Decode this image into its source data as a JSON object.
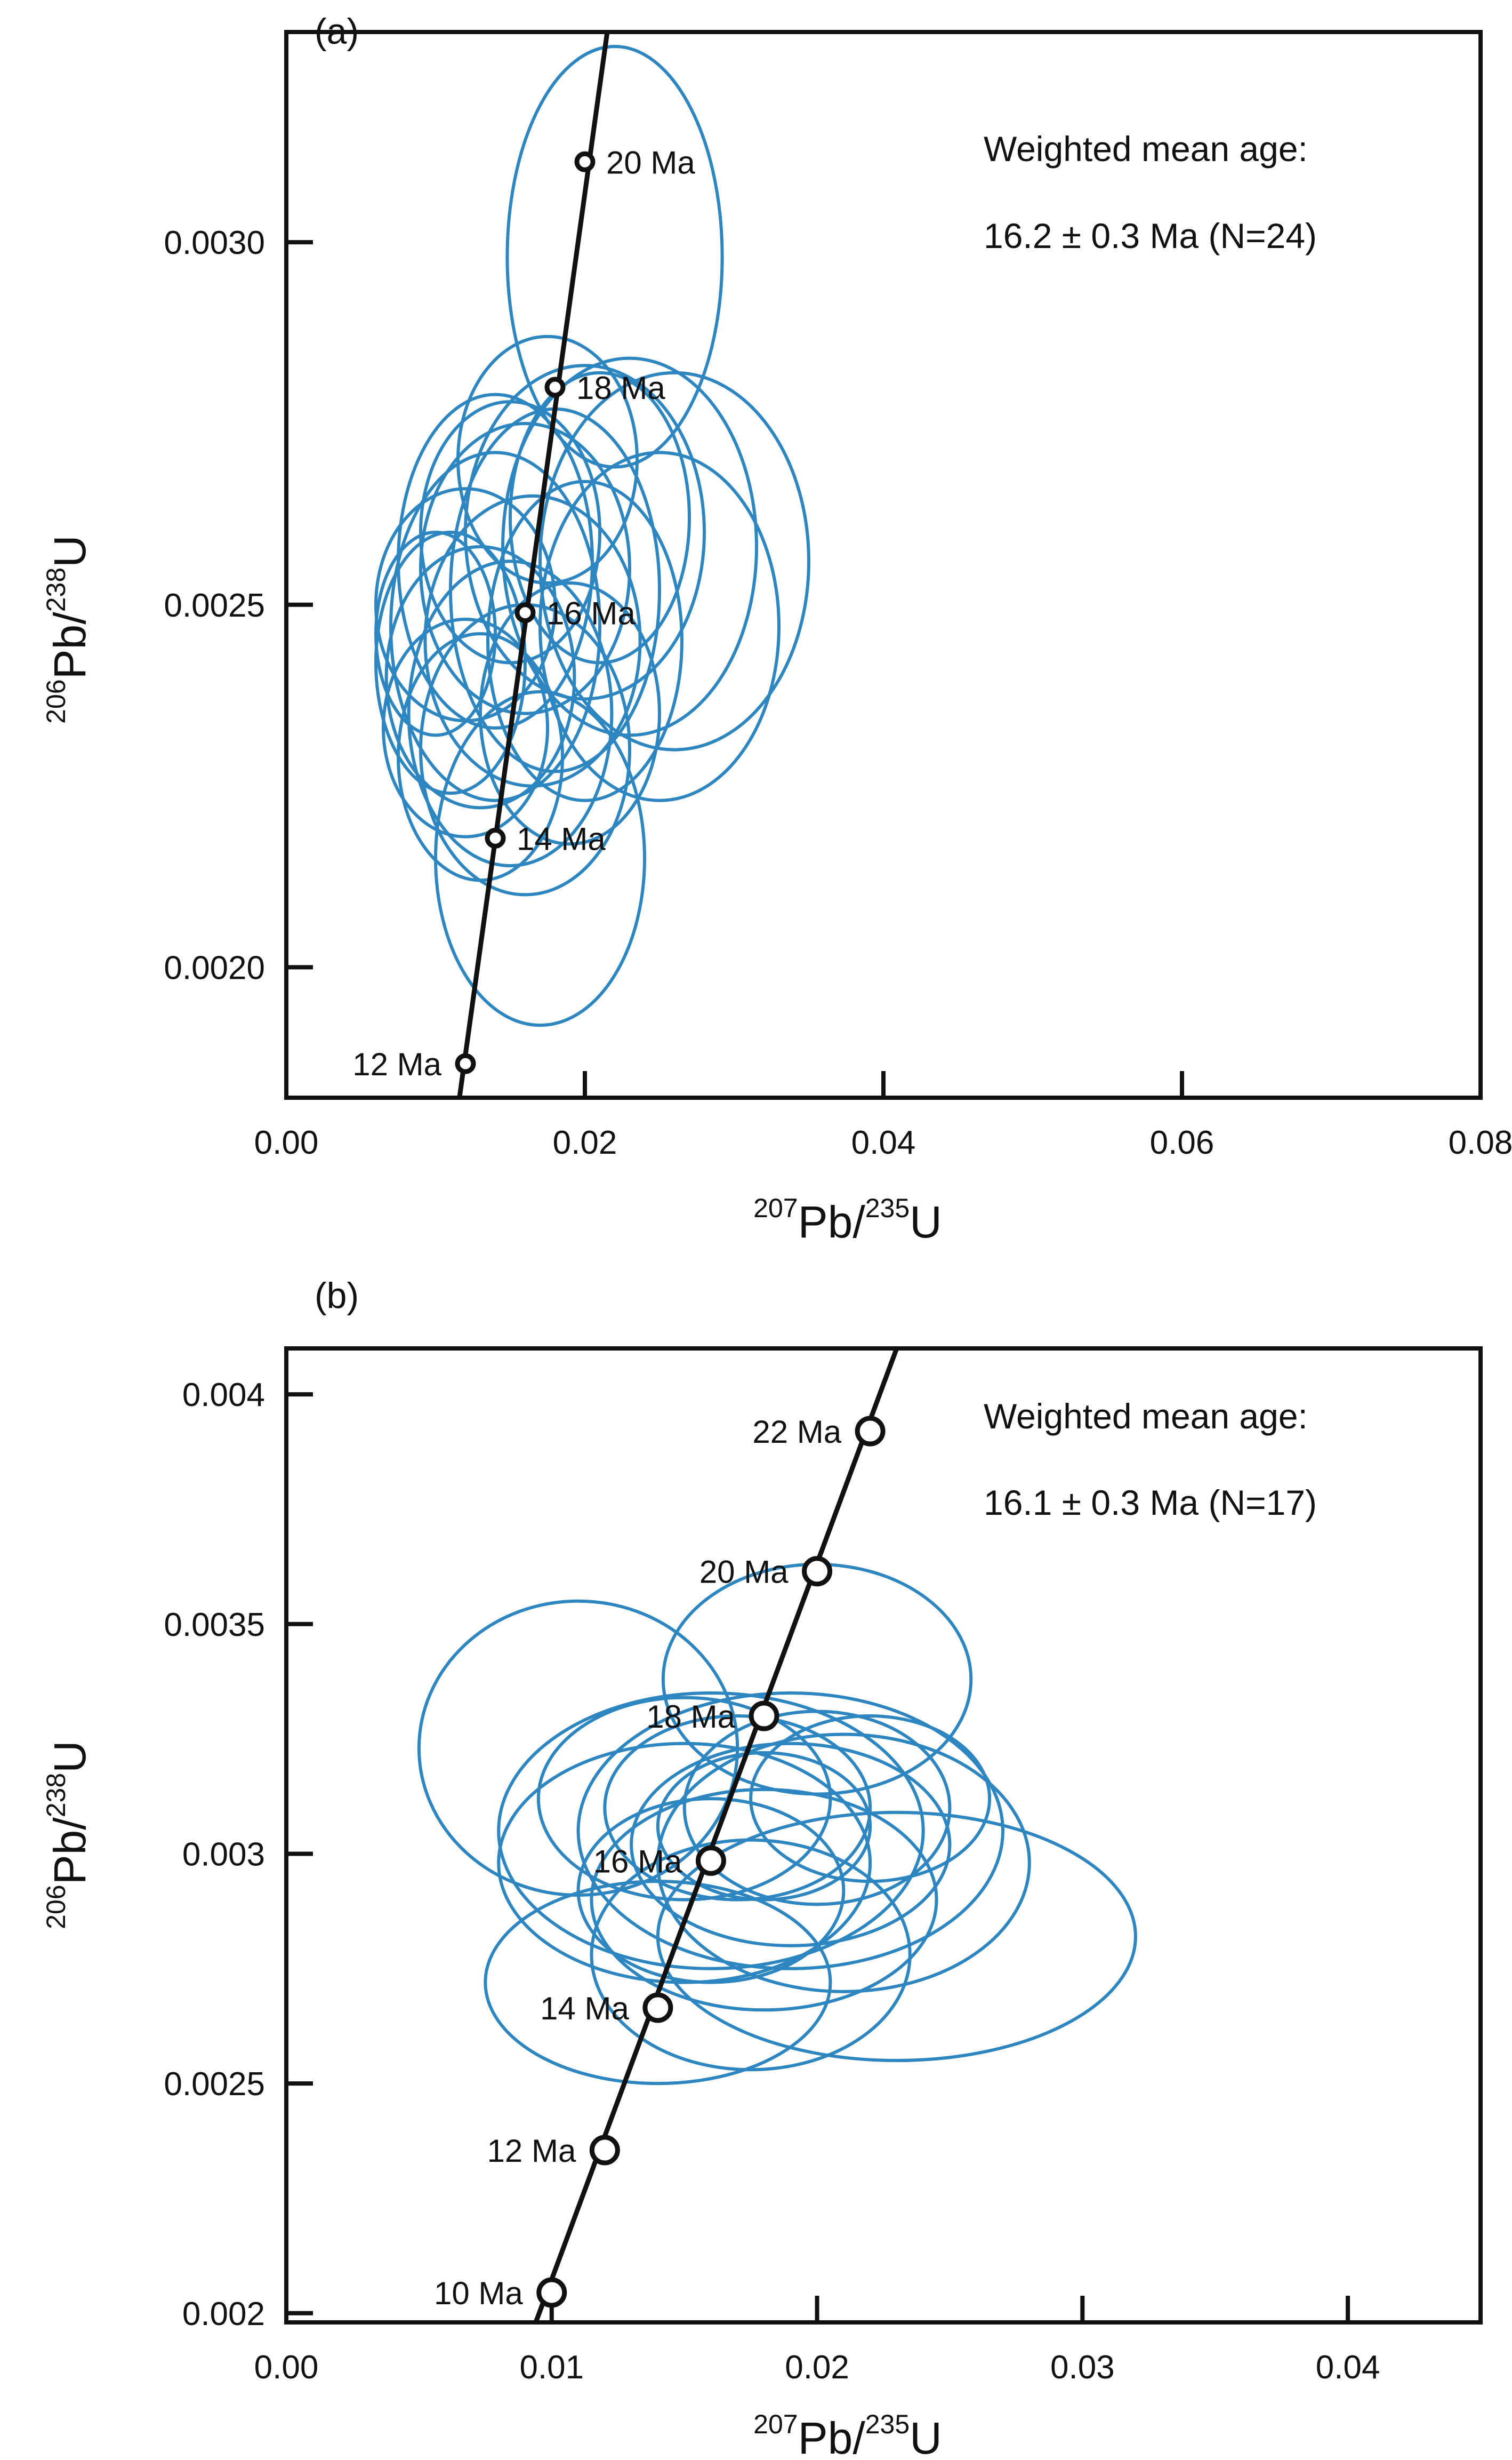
{
  "chart_data": [
    {
      "panel": "(a)",
      "type": "scatter",
      "subtype": "U-Pb concordia with error ellipses",
      "xlabel": {
        "sup1": "207",
        "base1": "Pb/",
        "sup2": "235",
        "base2": "U"
      },
      "ylabel": {
        "sup1": "206",
        "base1": "Pb/",
        "sup2": "238",
        "base2": "U"
      },
      "xlim": [
        0.0,
        0.08
      ],
      "ylim": [
        0.00182,
        0.00329
      ],
      "xticks": [
        0.0,
        0.02,
        0.04,
        0.06,
        0.08
      ],
      "xtick_labels": [
        "0.00",
        "0.02",
        "0.04",
        "0.06",
        "0.08"
      ],
      "yticks": [
        0.002,
        0.0025,
        0.003
      ],
      "ytick_labels": [
        "0.0020",
        "0.0025",
        "0.0030"
      ],
      "annotation": {
        "line1": "Weighted mean age:",
        "line2": "16.2 ± 0.3 Ma (N=24)"
      },
      "concordia_line": [
        [
          0.0116,
          0.00182
        ],
        [
          0.0215,
          0.00329
        ]
      ],
      "concordia_points": [
        {
          "label": "12 Ma",
          "x": 0.012,
          "y": 0.001867,
          "side": "left"
        },
        {
          "label": "14 Ma",
          "x": 0.014,
          "y": 0.002178,
          "side": "right"
        },
        {
          "label": "16 Ma",
          "x": 0.016,
          "y": 0.002489,
          "side": "right"
        },
        {
          "label": "18 Ma",
          "x": 0.018,
          "y": 0.0028,
          "side": "right"
        },
        {
          "label": "20 Ma",
          "x": 0.02,
          "y": 0.003111,
          "side": "right"
        }
      ],
      "ellipse_color": "#2e86c1",
      "ellipses": [
        {
          "cx": 0.022,
          "cy": 0.00298,
          "rx": 0.0072,
          "ry": 0.00029
        },
        {
          "cx": 0.026,
          "cy": 0.00256,
          "rx": 0.009,
          "ry": 0.00026
        },
        {
          "cx": 0.023,
          "cy": 0.00258,
          "rx": 0.0085,
          "ry": 0.00026
        },
        {
          "cx": 0.025,
          "cy": 0.00247,
          "rx": 0.008,
          "ry": 0.00024
        },
        {
          "cx": 0.02,
          "cy": 0.0026,
          "rx": 0.008,
          "ry": 0.00023
        },
        {
          "cx": 0.016,
          "cy": 0.00255,
          "rx": 0.007,
          "ry": 0.0002
        },
        {
          "cx": 0.014,
          "cy": 0.00247,
          "rx": 0.007,
          "ry": 0.00024
        },
        {
          "cx": 0.013,
          "cy": 0.0024,
          "rx": 0.0063,
          "ry": 0.00018
        },
        {
          "cx": 0.016,
          "cy": 0.0023,
          "rx": 0.007,
          "ry": 0.0002
        },
        {
          "cx": 0.017,
          "cy": 0.00215,
          "rx": 0.007,
          "ry": 0.00023
        },
        {
          "cx": 0.012,
          "cy": 0.0025,
          "rx": 0.006,
          "ry": 0.00016
        },
        {
          "cx": 0.018,
          "cy": 0.00252,
          "rx": 0.007,
          "ry": 0.00025
        },
        {
          "cx": 0.011,
          "cy": 0.00242,
          "rx": 0.005,
          "ry": 0.00018
        },
        {
          "cx": 0.015,
          "cy": 0.0026,
          "rx": 0.006,
          "ry": 0.00018
        },
        {
          "cx": 0.02,
          "cy": 0.00245,
          "rx": 0.0065,
          "ry": 0.00022
        },
        {
          "cx": 0.013,
          "cy": 0.00229,
          "rx": 0.0055,
          "ry": 0.00017
        },
        {
          "cx": 0.0175,
          "cy": 0.0027,
          "rx": 0.006,
          "ry": 0.00017
        },
        {
          "cx": 0.014,
          "cy": 0.00256,
          "rx": 0.0065,
          "ry": 0.00023
        },
        {
          "cx": 0.021,
          "cy": 0.00262,
          "rx": 0.006,
          "ry": 0.0002
        },
        {
          "cx": 0.015,
          "cy": 0.00235,
          "rx": 0.0068,
          "ry": 0.00021
        },
        {
          "cx": 0.012,
          "cy": 0.00233,
          "rx": 0.0055,
          "ry": 0.00015
        },
        {
          "cx": 0.019,
          "cy": 0.00235,
          "rx": 0.006,
          "ry": 0.00018
        },
        {
          "cx": 0.0165,
          "cy": 0.00245,
          "rx": 0.0072,
          "ry": 0.0002
        },
        {
          "cx": 0.01,
          "cy": 0.00246,
          "rx": 0.004,
          "ry": 0.00014
        }
      ]
    },
    {
      "panel": "(b)",
      "type": "scatter",
      "subtype": "U-Pb concordia with error ellipses",
      "xlabel": {
        "sup1": "207",
        "base1": "Pb/",
        "sup2": "235",
        "base2": "U"
      },
      "ylabel": {
        "sup1": "206",
        "base1": "Pb/",
        "sup2": "238",
        "base2": "U"
      },
      "xlim": [
        0.0,
        0.045
      ],
      "ylim": [
        0.00198,
        0.0041
      ],
      "xticks": [
        0.0,
        0.01,
        0.02,
        0.03,
        0.04
      ],
      "xtick_labels": [
        "0.00",
        "0.01",
        "0.02",
        "0.03",
        "0.04"
      ],
      "yticks": [
        0.002,
        0.0025,
        0.003,
        0.0035,
        0.004
      ],
      "ytick_labels": [
        "0.002",
        "0.0025",
        "0.003",
        "0.0035",
        "0.004"
      ],
      "annotation": {
        "line1": "Weighted mean age:",
        "line2": "16.1 ± 0.3 Ma (N=17)"
      },
      "concordia_line": [
        [
          0.0094,
          0.00198
        ],
        [
          0.023,
          0.0041
        ]
      ],
      "concordia_points": [
        {
          "label": "10 Ma",
          "x": 0.01,
          "y": 0.002045,
          "side": "left"
        },
        {
          "label": "12 Ma",
          "x": 0.012,
          "y": 0.002355,
          "side": "left"
        },
        {
          "label": "14 Ma",
          "x": 0.014,
          "y": 0.002665,
          "side": "left"
        },
        {
          "label": "16 Ma",
          "x": 0.016,
          "y": 0.002985,
          "side": "left"
        },
        {
          "label": "18 Ma",
          "x": 0.018,
          "y": 0.0033,
          "side": "left"
        },
        {
          "label": "20 Ma",
          "x": 0.02,
          "y": 0.003615,
          "side": "left"
        },
        {
          "label": "22 Ma",
          "x": 0.022,
          "y": 0.00392,
          "side": "left"
        }
      ],
      "ellipse_color": "#2e86c1",
      "ellipses": [
        {
          "cx": 0.011,
          "cy": 0.00323,
          "rx": 0.006,
          "ry": 0.00032
        },
        {
          "cx": 0.02,
          "cy": 0.00338,
          "rx": 0.0058,
          "ry": 0.00025
        },
        {
          "cx": 0.023,
          "cy": 0.00282,
          "rx": 0.009,
          "ry": 0.00027
        },
        {
          "cx": 0.014,
          "cy": 0.00272,
          "rx": 0.0065,
          "ry": 0.00022
        },
        {
          "cx": 0.019,
          "cy": 0.00305,
          "rx": 0.008,
          "ry": 0.0003
        },
        {
          "cx": 0.016,
          "cy": 0.00305,
          "rx": 0.008,
          "ry": 0.0003
        },
        {
          "cx": 0.015,
          "cy": 0.00298,
          "rx": 0.007,
          "ry": 0.00026
        },
        {
          "cx": 0.021,
          "cy": 0.00298,
          "rx": 0.007,
          "ry": 0.00028
        },
        {
          "cx": 0.018,
          "cy": 0.0029,
          "rx": 0.0065,
          "ry": 0.00024
        },
        {
          "cx": 0.0175,
          "cy": 0.00278,
          "rx": 0.006,
          "ry": 0.00025
        },
        {
          "cx": 0.017,
          "cy": 0.0031,
          "rx": 0.005,
          "ry": 0.0002
        },
        {
          "cx": 0.019,
          "cy": 0.00302,
          "rx": 0.006,
          "ry": 0.00022
        },
        {
          "cx": 0.02,
          "cy": 0.0031,
          "rx": 0.005,
          "ry": 0.00021
        },
        {
          "cx": 0.016,
          "cy": 0.00292,
          "rx": 0.005,
          "ry": 0.0002
        },
        {
          "cx": 0.022,
          "cy": 0.00312,
          "rx": 0.0045,
          "ry": 0.00018
        },
        {
          "cx": 0.015,
          "cy": 0.00312,
          "rx": 0.0055,
          "ry": 0.00022
        },
        {
          "cx": 0.018,
          "cy": 0.00306,
          "rx": 0.004,
          "ry": 0.00016
        }
      ]
    }
  ]
}
